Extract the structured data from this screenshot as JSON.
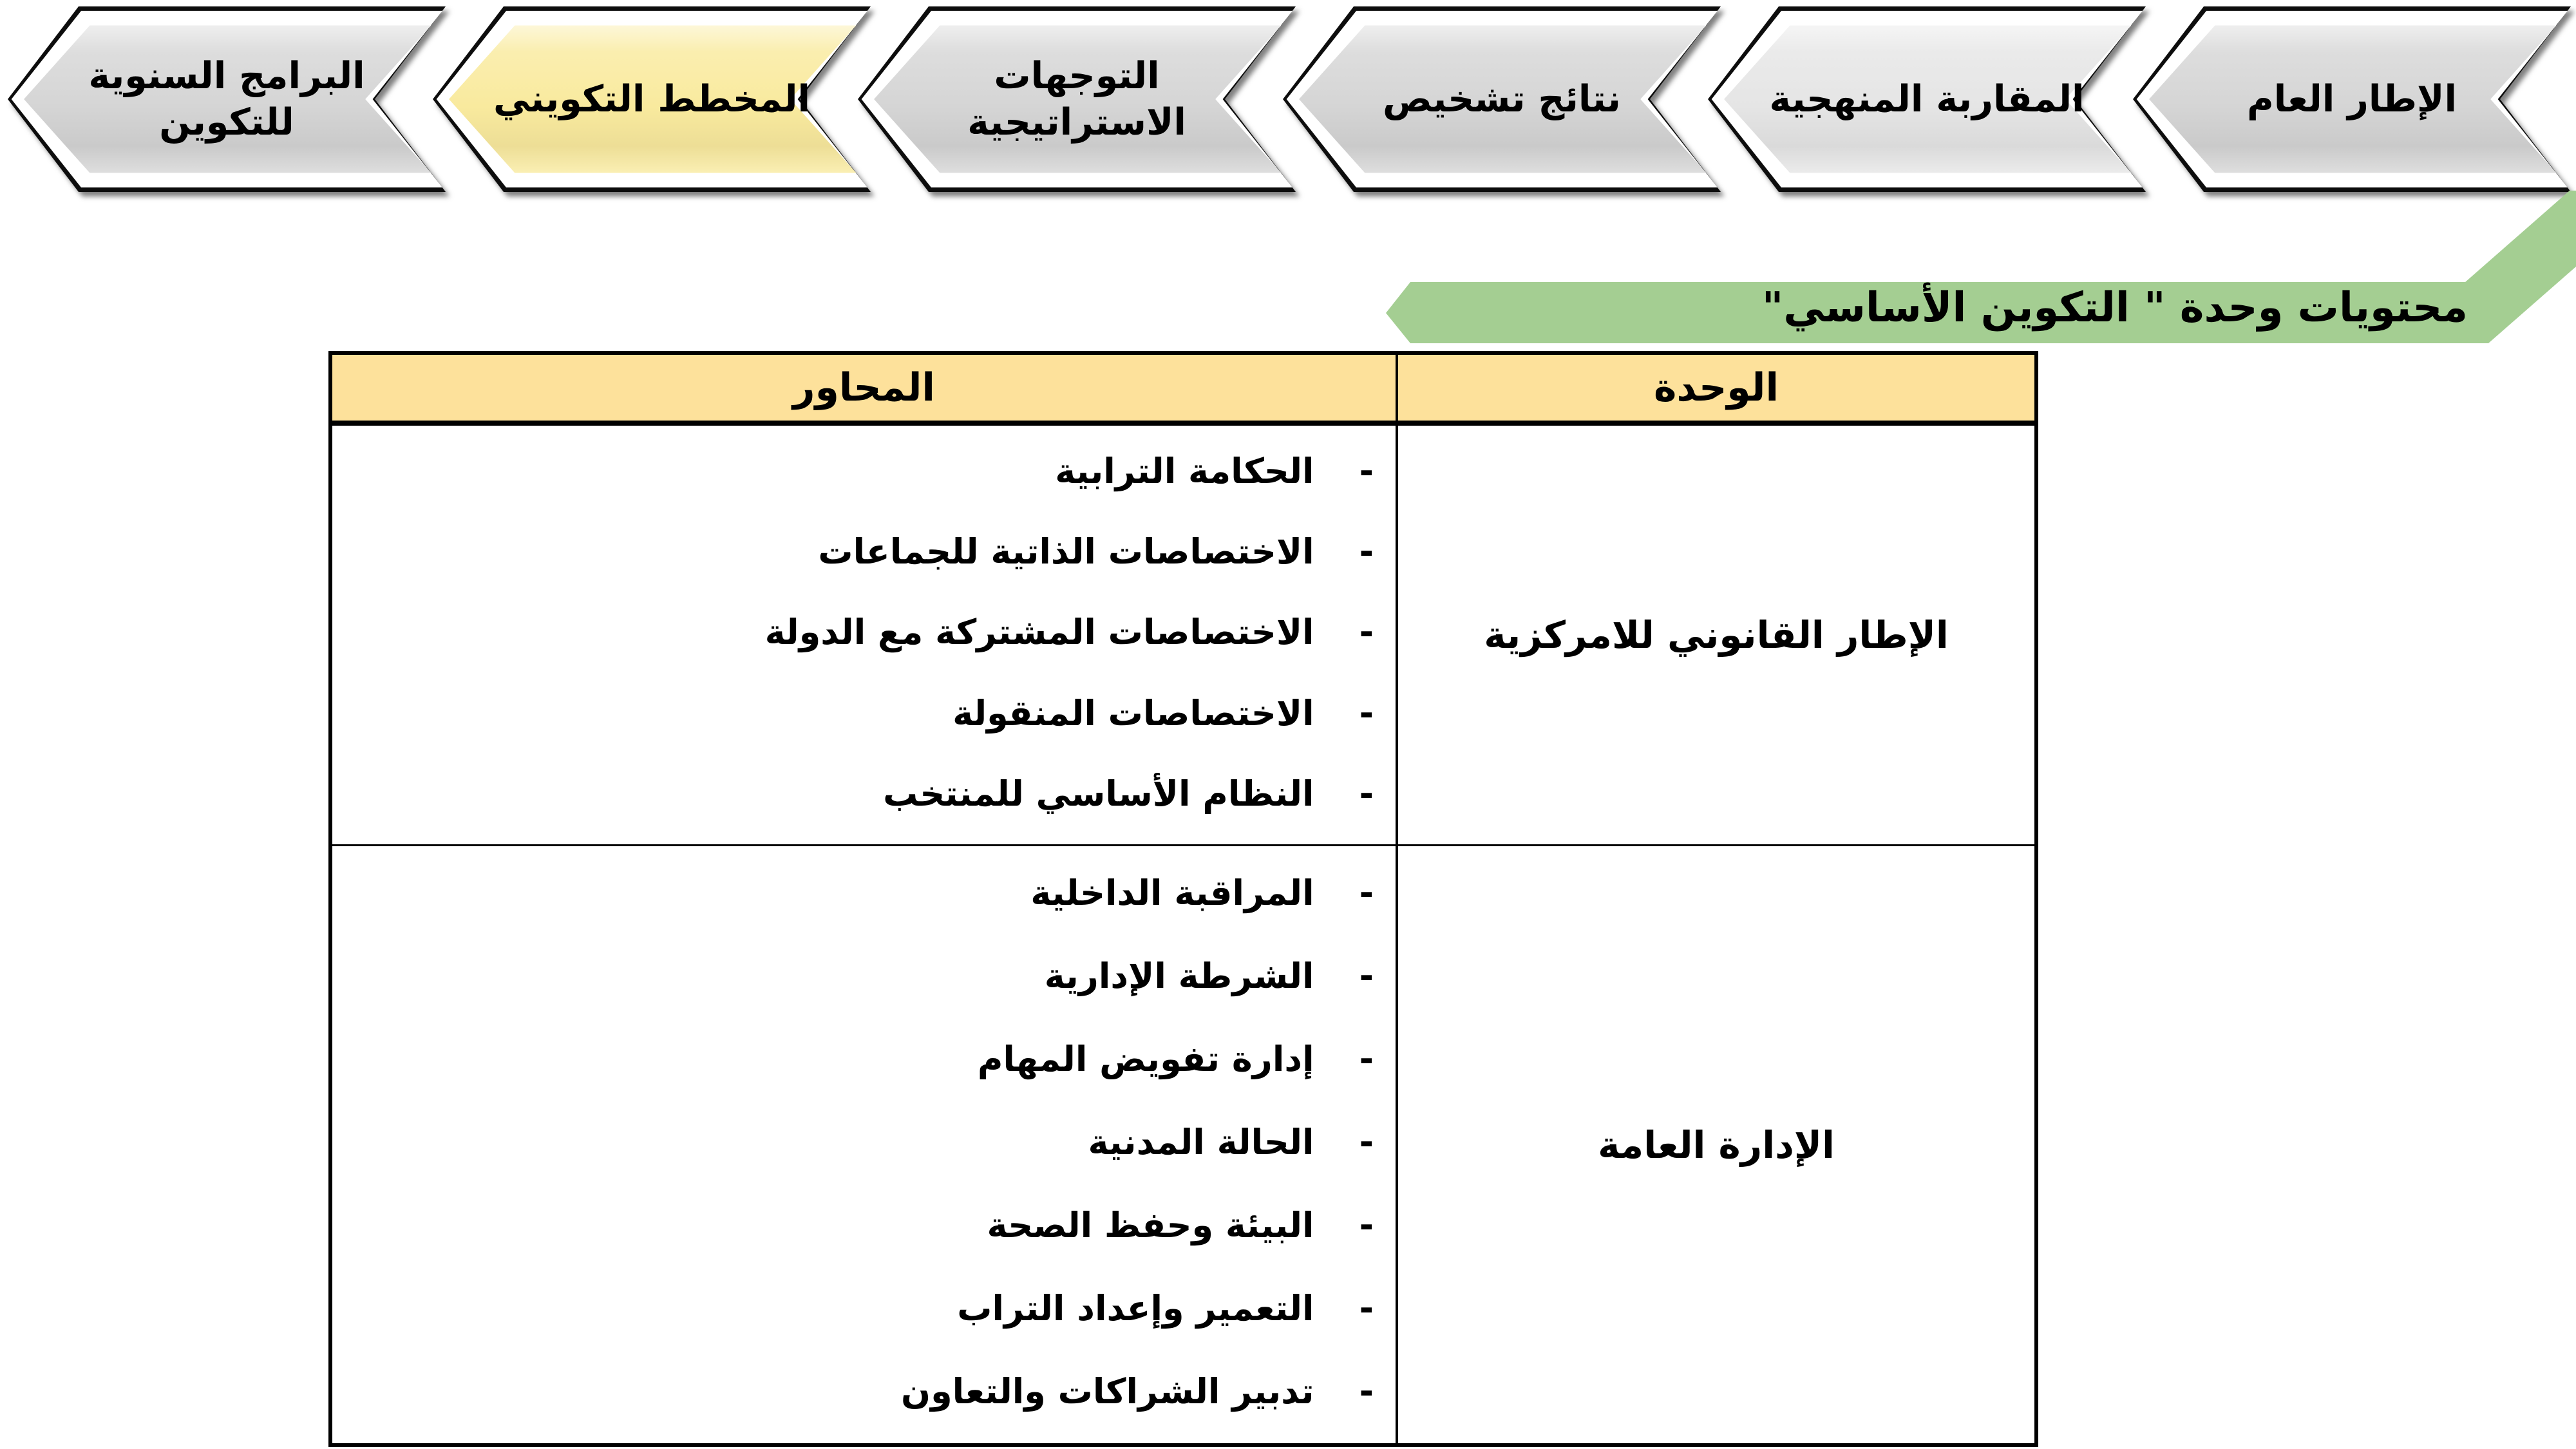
{
  "process_nav": {
    "steps": [
      {
        "label": "الإطار العام",
        "fill": "#D5D5D5",
        "active": false
      },
      {
        "label": "المقاربة المنهجية",
        "fill": "#E5E5E5",
        "active": false
      },
      {
        "label": "نتائج تشخيص",
        "fill": "#D5D5D5",
        "active": false
      },
      {
        "label": "التوجهات\nالاستراتيجية",
        "fill": "#D5D5D5",
        "active": false
      },
      {
        "label": "المخطط التكويني",
        "fill": "#F9EA9E",
        "active": true
      },
      {
        "label": "البرامج السنوية\nللتكوين",
        "fill": "#D5D5D5",
        "active": false
      }
    ]
  },
  "banner": {
    "title": "محتويات وحدة \" التكوين الأساسي\"",
    "fill": "#A4CE92"
  },
  "table": {
    "header": {
      "unit_col": "الوحدة",
      "axes_col": "المحاور",
      "fill": "#FDE19B"
    },
    "bullet": "-",
    "rows": [
      {
        "unit": "الإطار القانوني للامركزية",
        "axes": [
          "الحكامة الترابية",
          "الاختصاصات الذاتية للجماعات",
          "الاختصاصات المشتركة مع الدولة",
          "الاختصاصات المنقولة",
          "النظام الأساسي للمنتخب"
        ]
      },
      {
        "unit": "الإدارة العامة",
        "axes": [
          "المراقبة الداخلية",
          "الشرطة الإدارية",
          "إدارة تفويض المهام",
          "الحالة المدنية",
          "البيئة وحفظ الصحة",
          "التعمير وإعداد التراب",
          "تدبير الشراكات والتعاون"
        ]
      }
    ]
  }
}
